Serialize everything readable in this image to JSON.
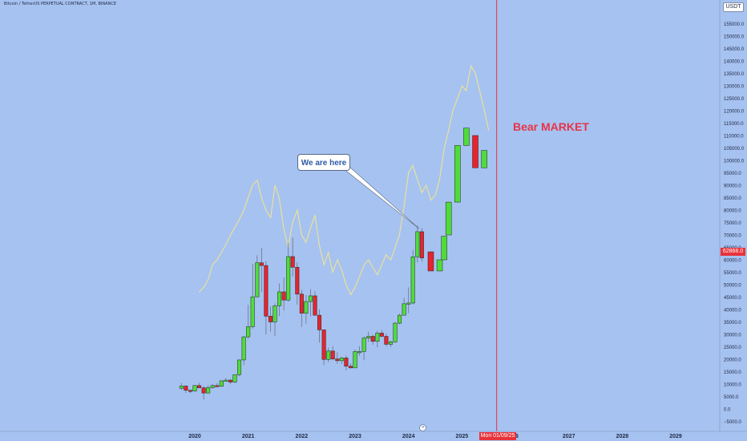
{
  "header": {
    "symbol_title": "Bitcoin / TetherUS PERPETUAL CONTRACT, 1M, BINANCE",
    "currency": "USDT"
  },
  "annotations": {
    "callout": "We are here",
    "bear_label": "Bear MARKET"
  },
  "last_price": "62868.0",
  "crosshair_date": "Mon 01/09/25",
  "icons": {
    "goto_realtime": "double-chevron-down-icon"
  },
  "colors": {
    "background": "#a6c2f0",
    "candle_up": "#4fdc3a",
    "candle_down": "#e8232e",
    "overlay_line": "#e8e19c",
    "vertical_marker": "#e8333a",
    "bear_text": "#e8334a"
  },
  "chart_data": {
    "type": "candlestick",
    "y_axis": {
      "range": [
        -7500,
        160000
      ],
      "tick_labels": [
        "−5000.0",
        "0.0",
        "5000.0",
        "10000.0",
        "15000.0",
        "20000.0",
        "25000.0",
        "30000.0",
        "35000.0",
        "40000.0",
        "45000.0",
        "50000.0",
        "55000.0",
        "60000.0",
        "65000.0",
        "70000.0",
        "75000.0",
        "80000.0",
        "85000.0",
        "90000.0",
        "95000.0",
        "100000.0",
        "105000.0",
        "110000.0",
        "115000.0",
        "120000.0",
        "125000.0",
        "130000.0",
        "135000.0",
        "140000.0",
        "145000.0",
        "150000.0",
        "155000.0"
      ],
      "tick_values": [
        -5000,
        0,
        5000,
        10000,
        15000,
        20000,
        25000,
        30000,
        35000,
        40000,
        45000,
        50000,
        55000,
        60000,
        65000,
        70000,
        75000,
        80000,
        85000,
        90000,
        95000,
        100000,
        105000,
        110000,
        115000,
        120000,
        125000,
        130000,
        135000,
        140000,
        145000,
        150000,
        155000
      ]
    },
    "x_axis": {
      "tick_labels": [
        "2020",
        "2021",
        "2022",
        "2023",
        "2024",
        "2025",
        "26",
        "2027",
        "2028",
        "2029"
      ],
      "tick_years": [
        2020,
        2021,
        2022,
        2023,
        2024,
        2025,
        2026,
        2027,
        2028,
        2029
      ]
    },
    "grid": false,
    "candles_bucket1": [
      {
        "t": 2019.75,
        "o": 8300,
        "h": 10400,
        "l": 7700,
        "c": 9200
      },
      {
        "t": 2019.833,
        "o": 9200,
        "h": 9500,
        "l": 6500,
        "c": 7500
      },
      {
        "t": 2019.917,
        "o": 7500,
        "h": 7800,
        "l": 6400,
        "c": 7200
      },
      {
        "t": 2020.0,
        "o": 7200,
        "h": 9600,
        "l": 6900,
        "c": 9400
      },
      {
        "t": 2020.083,
        "o": 9400,
        "h": 10500,
        "l": 8500,
        "c": 8500
      },
      {
        "t": 2020.167,
        "o": 8500,
        "h": 9200,
        "l": 3800,
        "c": 6400
      },
      {
        "t": 2020.25,
        "o": 6400,
        "h": 9500,
        "l": 6200,
        "c": 8600
      },
      {
        "t": 2020.333,
        "o": 8600,
        "h": 10000,
        "l": 8100,
        "c": 9400
      },
      {
        "t": 2020.417,
        "o": 9400,
        "h": 10400,
        "l": 8900,
        "c": 9100
      },
      {
        "t": 2020.5,
        "o": 9100,
        "h": 11500,
        "l": 8900,
        "c": 11300
      },
      {
        "t": 2020.583,
        "o": 11300,
        "h": 12400,
        "l": 11000,
        "c": 11600
      },
      {
        "t": 2020.667,
        "o": 11600,
        "h": 12000,
        "l": 10000,
        "c": 10800
      },
      {
        "t": 2020.75,
        "o": 10800,
        "h": 14000,
        "l": 10400,
        "c": 13800
      },
      {
        "t": 2020.833,
        "o": 13800,
        "h": 19900,
        "l": 13200,
        "c": 19700
      },
      {
        "t": 2020.917,
        "o": 19700,
        "h": 29300,
        "l": 17600,
        "c": 29000
      },
      {
        "t": 2021.0,
        "o": 29000,
        "h": 41900,
        "l": 28200,
        "c": 33100
      },
      {
        "t": 2021.083,
        "o": 33100,
        "h": 58300,
        "l": 32300,
        "c": 45100
      },
      {
        "t": 2021.167,
        "o": 45100,
        "h": 61800,
        "l": 44900,
        "c": 58800
      },
      {
        "t": 2021.25,
        "o": 58800,
        "h": 64800,
        "l": 47100,
        "c": 57700
      },
      {
        "t": 2021.333,
        "o": 57700,
        "h": 59500,
        "l": 30000,
        "c": 37300
      },
      {
        "t": 2021.417,
        "o": 37300,
        "h": 41300,
        "l": 31100,
        "c": 35000
      },
      {
        "t": 2021.5,
        "o": 35000,
        "h": 42400,
        "l": 29300,
        "c": 41500
      },
      {
        "t": 2021.583,
        "o": 41500,
        "h": 50500,
        "l": 37300,
        "c": 47100
      },
      {
        "t": 2021.667,
        "o": 47100,
        "h": 52900,
        "l": 39600,
        "c": 43800
      }
    ],
    "candles_bucket2": [
      {
        "t": 2021.75,
        "o": 43800,
        "h": 66900,
        "l": 43200,
        "c": 61300
      },
      {
        "t": 2021.833,
        "o": 61300,
        "h": 69000,
        "l": 53300,
        "c": 57000
      },
      {
        "t": 2021.917,
        "o": 57000,
        "h": 59000,
        "l": 42000,
        "c": 46200
      },
      {
        "t": 2022.0,
        "o": 46200,
        "h": 47900,
        "l": 33000,
        "c": 38500
      },
      {
        "t": 2022.083,
        "o": 38500,
        "h": 45800,
        "l": 34300,
        "c": 43200
      },
      {
        "t": 2022.167,
        "o": 43200,
        "h": 48200,
        "l": 37200,
        "c": 45500
      },
      {
        "t": 2022.25,
        "o": 45500,
        "h": 47400,
        "l": 37700,
        "c": 37700
      },
      {
        "t": 2022.333,
        "o": 37700,
        "h": 40000,
        "l": 26700,
        "c": 31800
      },
      {
        "t": 2022.417,
        "o": 31800,
        "h": 31900,
        "l": 17600,
        "c": 19900
      },
      {
        "t": 2022.5,
        "o": 19900,
        "h": 24700,
        "l": 18800,
        "c": 23300
      },
      {
        "t": 2022.583,
        "o": 23300,
        "h": 25200,
        "l": 19600,
        "c": 20100
      },
      {
        "t": 2022.667,
        "o": 20100,
        "h": 22800,
        "l": 18200,
        "c": 19400
      },
      {
        "t": 2022.75,
        "o": 19400,
        "h": 21000,
        "l": 18200,
        "c": 20500
      },
      {
        "t": 2022.833,
        "o": 20500,
        "h": 21500,
        "l": 15500,
        "c": 17200
      },
      {
        "t": 2022.917,
        "o": 17200,
        "h": 18400,
        "l": 16300,
        "c": 16500
      },
      {
        "t": 2023.0,
        "o": 16500,
        "h": 23900,
        "l": 16500,
        "c": 23100
      },
      {
        "t": 2023.083,
        "o": 23100,
        "h": 25300,
        "l": 21400,
        "c": 23100
      },
      {
        "t": 2023.167,
        "o": 23100,
        "h": 29200,
        "l": 19600,
        "c": 28500
      },
      {
        "t": 2023.25,
        "o": 28500,
        "h": 31000,
        "l": 26900,
        "c": 29200
      },
      {
        "t": 2023.333,
        "o": 29200,
        "h": 29800,
        "l": 25800,
        "c": 27200
      },
      {
        "t": 2023.417,
        "o": 27200,
        "h": 31400,
        "l": 24800,
        "c": 30500
      },
      {
        "t": 2023.5,
        "o": 30500,
        "h": 31800,
        "l": 28900,
        "c": 29200
      },
      {
        "t": 2023.583,
        "o": 29200,
        "h": 30200,
        "l": 25200,
        "c": 26000
      },
      {
        "t": 2023.667,
        "o": 26000,
        "h": 27500,
        "l": 24900,
        "c": 27000
      }
    ],
    "candles_bucket3": [
      {
        "t": 2023.75,
        "o": 27000,
        "h": 35000,
        "l": 26500,
        "c": 34500
      },
      {
        "t": 2023.833,
        "o": 34500,
        "h": 38400,
        "l": 34000,
        "c": 37700
      },
      {
        "t": 2023.917,
        "o": 37700,
        "h": 44700,
        "l": 37600,
        "c": 42300
      },
      {
        "t": 2024.0,
        "o": 42300,
        "h": 48900,
        "l": 38500,
        "c": 42600
      },
      {
        "t": 2024.083,
        "o": 42600,
        "h": 63900,
        "l": 42000,
        "c": 61200
      },
      {
        "t": 2024.167,
        "o": 61200,
        "h": 73800,
        "l": 59000,
        "c": 71300
      },
      {
        "t": 2024.25,
        "o": 71300,
        "h": 72700,
        "l": 59200,
        "c": 60700
      },
      {
        "t": 2024.417,
        "o": 63200,
        "h": 63400,
        "l": 55500,
        "c": 55500
      },
      {
        "t": 2024.583,
        "o": 55500,
        "h": 60000,
        "l": 55500,
        "c": 60000
      },
      {
        "t": 2024.667,
        "o": 60000,
        "h": 69500,
        "l": 60000,
        "c": 69500
      },
      {
        "t": 2024.75,
        "o": 70000,
        "h": 83200,
        "l": 70000,
        "c": 83200
      },
      {
        "t": 2024.917,
        "o": 83200,
        "h": 106000,
        "l": 83200,
        "c": 106000
      },
      {
        "t": 2025.083,
        "o": 106000,
        "h": 113000,
        "l": 106000,
        "c": 113000
      },
      {
        "t": 2025.25,
        "o": 110000,
        "h": 110000,
        "l": 97000,
        "c": 97000
      },
      {
        "t": 2025.417,
        "o": 97000,
        "h": 104000,
        "l": 97000,
        "c": 104000
      }
    ],
    "overlay_series": {
      "name": "",
      "x": [
        2020.08,
        2020.17,
        2020.25,
        2020.33,
        2020.42,
        2020.5,
        2020.58,
        2020.67,
        2020.75,
        2020.83,
        2020.92,
        2021.0,
        2021.08,
        2021.17,
        2021.25,
        2021.33,
        2021.42,
        2021.5,
        2021.58,
        2021.67,
        2021.75,
        2021.83,
        2021.92,
        2022.0,
        2022.08,
        2022.17,
        2022.25,
        2022.33,
        2022.42,
        2022.5,
        2022.58,
        2022.67,
        2022.75,
        2022.83,
        2022.92,
        2023.0,
        2023.08,
        2023.17,
        2023.25,
        2023.33,
        2023.42,
        2023.5,
        2023.58,
        2023.67,
        2023.75,
        2023.83,
        2023.92,
        2024.0,
        2024.08,
        2024.17,
        2024.25,
        2024.33,
        2024.42,
        2024.5,
        2024.58,
        2024.67,
        2024.75,
        2024.83,
        2024.92,
        2025.0,
        2025.08,
        2025.17,
        2025.25,
        2025.33,
        2025.42,
        2025.5
      ],
      "values": [
        47000,
        49000,
        52000,
        58000,
        60000,
        63000,
        66000,
        70000,
        73000,
        76000,
        80000,
        85000,
        90000,
        92000,
        85000,
        80000,
        77000,
        90000,
        85000,
        72000,
        65000,
        75000,
        80000,
        70000,
        67000,
        73000,
        78000,
        66000,
        58000,
        63000,
        55000,
        60000,
        56000,
        50000,
        46000,
        49000,
        53000,
        58000,
        60000,
        57000,
        54000,
        58000,
        62000,
        60000,
        65000,
        70000,
        82000,
        95000,
        98000,
        92000,
        87000,
        90000,
        84000,
        86000,
        92000,
        105000,
        112000,
        120000,
        125000,
        130000,
        128000,
        138000,
        135000,
        128000,
        120000,
        112000
      ]
    },
    "vertical_marker_year": 2025.65,
    "callout_target": {
      "t": 2024.2,
      "v": 72500
    }
  }
}
